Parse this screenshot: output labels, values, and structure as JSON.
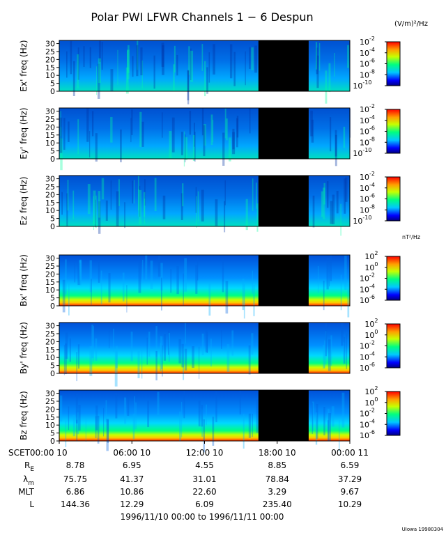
{
  "title": "Polar PWI LFWR Channels 1 − 6 Despun",
  "unit_e": "(V/m)²/Hz",
  "unit_b": "nT²/Hz",
  "chart_data": {
    "type": "heatmap",
    "title": "Polar PWI LFWR Channels 1 − 6 Despun",
    "ylim": [
      0,
      32
    ],
    "yticks": [
      0,
      5,
      10,
      15,
      20,
      25,
      30
    ],
    "time_range_hours": [
      0,
      24
    ],
    "panels": [
      {
        "ylabel": "Ex' freq (Hz)",
        "kind": "E"
      },
      {
        "ylabel": "Ey' freq (Hz)",
        "kind": "E"
      },
      {
        "ylabel": "Ez freq (Hz)",
        "kind": "E"
      },
      {
        "ylabel": "Bx' freq (Hz)",
        "kind": "B"
      },
      {
        "ylabel": "By' freq (Hz)",
        "kind": "B"
      },
      {
        "ylabel": "Bz freq (Hz)",
        "kind": "B"
      }
    ],
    "data_gap_hours": [
      16.45,
      20.6
    ],
    "colorbars": {
      "E": {
        "exponents": [
          -2,
          -4,
          -6,
          -8,
          -10
        ]
      },
      "B": {
        "exponents": [
          2,
          0,
          -2,
          -4,
          -6
        ]
      }
    },
    "x_ticks": [
      "SCET00:00 10",
      "06:00 10",
      "12:00 10",
      "18:00 10",
      "00:00 11"
    ],
    "x_tick_hours": [
      0,
      6,
      12,
      18,
      24
    ],
    "ephemeris": [
      {
        "label": "R",
        "sub": "E",
        "values": [
          "8.78",
          "6.95",
          "4.55",
          "8.85",
          "6.59"
        ]
      },
      {
        "label": "λ",
        "sub": "m",
        "values": [
          "75.75",
          "41.37",
          "31.01",
          "78.84",
          "37.29"
        ]
      },
      {
        "label": "MLT",
        "sub": "",
        "values": [
          "6.86",
          "10.86",
          "22.60",
          "3.29",
          "9.67"
        ]
      },
      {
        "label": "L",
        "sub": "",
        "values": [
          "144.36",
          "12.29",
          "6.09",
          "235.40",
          "10.29"
        ]
      }
    ],
    "date_range": "1996/11/10 00:00 to 1996/11/11 00:00",
    "footer": "UIowa 19980304"
  }
}
